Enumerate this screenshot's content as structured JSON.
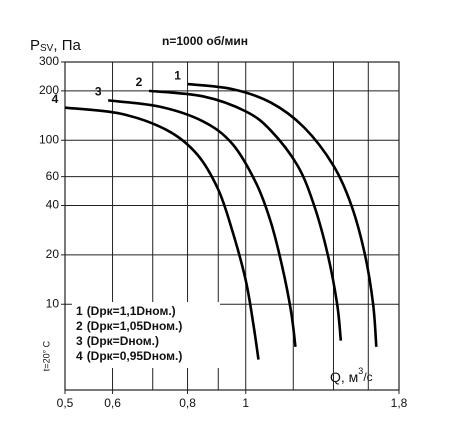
{
  "chart_data": {
    "type": "line",
    "title": "n=1000 об/мин",
    "y_label": "P",
    "y_label_sub": "SV",
    "y_label_unit": ", Па",
    "x_label": "Q, м",
    "x_label_sup": "3",
    "x_label_unit": "/с",
    "note": "t=20° C",
    "log_x": true,
    "log_y": true,
    "grid": true,
    "xlim": [
      0.5,
      1.8
    ],
    "ylim": [
      3,
      300
    ],
    "xticks": [
      {
        "value": 0.5,
        "label": "0,5"
      },
      {
        "value": 0.6,
        "label": "0,6"
      },
      {
        "value": 0.8,
        "label": "0,8"
      },
      1,
      {
        "value": 1.8,
        "label": "1,8"
      }
    ],
    "xgrid": [
      0.7,
      0.9,
      1.2,
      1.4,
      1.6
    ],
    "yticks": [
      300,
      200,
      100,
      60,
      40,
      20,
      10
    ],
    "legend": "bottom-left",
    "series": [
      {
        "name": "1",
        "description": "(Dрк=1,1Dном.)",
        "color": "#000000",
        "x": [
          0.8,
          0.95,
          1.1,
          1.25,
          1.4,
          1.5,
          1.58,
          1.63,
          1.65
        ],
        "values": [
          220,
          205,
          170,
          120,
          70,
          40,
          20,
          10,
          5.5
        ]
      },
      {
        "name": "2",
        "description": "(Dрк=1,05Dном.)",
        "color": "#000000",
        "x": [
          0.69,
          0.85,
          1.0,
          1.1,
          1.22,
          1.3,
          1.37,
          1.42,
          1.44
        ],
        "values": [
          200,
          185,
          150,
          115,
          70,
          40,
          20,
          10,
          6
        ]
      },
      {
        "name": "3",
        "description": "(Dрк=Dном.)",
        "color": "#000000",
        "x": [
          0.59,
          0.72,
          0.85,
          0.95,
          1.04,
          1.1,
          1.15,
          1.19,
          1.21
        ],
        "values": [
          175,
          160,
          130,
          95,
          55,
          32,
          17,
          9,
          5.5
        ]
      },
      {
        "name": "4",
        "description": "(Dрк=0,95Dном.)",
        "color": "#000000",
        "x": [
          0.5,
          0.62,
          0.74,
          0.83,
          0.9,
          0.95,
          1.0,
          1.03,
          1.05
        ],
        "values": [
          158,
          145,
          115,
          82,
          50,
          28,
          14,
          7.5,
          4.6
        ]
      }
    ]
  }
}
